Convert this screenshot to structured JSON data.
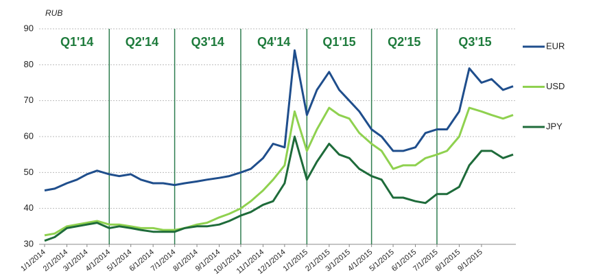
{
  "chart_data": {
    "type": "line",
    "y_unit_label": "RUB",
    "x": [
      "1/1/2014",
      "1/15/2014",
      "2/1/2014",
      "2/15/2014",
      "3/1/2014",
      "3/15/2014",
      "4/1/2014",
      "4/15/2014",
      "5/1/2014",
      "5/15/2014",
      "6/1/2014",
      "6/15/2014",
      "7/1/2014",
      "7/15/2014",
      "8/1/2014",
      "8/15/2014",
      "9/1/2014",
      "9/15/2014",
      "10/1/2014",
      "10/15/2014",
      "11/1/2014",
      "11/15/2014",
      "12/1/2014",
      "12/15/2014",
      "1/1/2015",
      "1/15/2015",
      "2/1/2015",
      "2/15/2015",
      "3/1/2015",
      "3/15/2015",
      "4/1/2015",
      "4/15/2015",
      "5/1/2015",
      "5/15/2015",
      "6/1/2015",
      "6/15/2015",
      "7/1/2015",
      "7/15/2015",
      "8/1/2015",
      "8/15/2015",
      "9/1/2015",
      "9/15/2015",
      "10/1/2015",
      "10/15/2015"
    ],
    "series": [
      {
        "name": "EUR",
        "color": "#1f4e8c",
        "values": [
          45,
          45.5,
          47,
          48,
          49.5,
          50.5,
          49.5,
          49,
          49.5,
          48,
          47,
          47,
          46.5,
          47,
          47.5,
          48,
          48.5,
          49,
          50,
          51,
          54,
          58,
          57,
          84,
          66,
          73,
          78,
          73,
          70,
          67,
          62,
          60,
          56,
          56,
          57,
          61,
          62,
          62,
          67,
          79,
          75,
          76,
          73,
          74
        ]
      },
      {
        "name": "USD",
        "color": "#8fd14f",
        "values": [
          32.5,
          33,
          35,
          35.5,
          36,
          36.5,
          35.5,
          35.5,
          35,
          34.5,
          34.5,
          34,
          34,
          34.5,
          35.5,
          36,
          37.5,
          38.5,
          40,
          42,
          45,
          48,
          52,
          67,
          56,
          62,
          68,
          66,
          65,
          61,
          58,
          56,
          51,
          52,
          52,
          54,
          55,
          56,
          60,
          68,
          67,
          66,
          65,
          66
        ]
      },
      {
        "name": "JPY",
        "color": "#1e6b3a",
        "values": [
          31,
          32,
          34.5,
          35,
          35.5,
          36,
          34.5,
          35,
          34.5,
          34,
          33.5,
          33.5,
          33.5,
          34.5,
          35,
          35,
          35.5,
          36.5,
          38,
          39,
          41,
          42,
          47,
          60,
          48,
          53,
          58,
          55,
          54,
          51,
          49,
          48,
          43,
          43,
          42,
          41.5,
          44,
          44,
          46,
          52,
          56,
          56,
          54,
          55
        ]
      }
    ],
    "xlim": [
      "1/1/2014",
      "10/15/2015"
    ],
    "xticks": [
      "1/1/2014",
      "2/1/2014",
      "3/1/2014",
      "4/1/2014",
      "5/1/2014",
      "6/1/2014",
      "7/1/2014",
      "8/1/2014",
      "9/1/2014",
      "10/1/2014",
      "11/1/2014",
      "12/1/2014",
      "1/1/2015",
      "2/1/2015",
      "3/1/2015",
      "4/1/2015",
      "5/1/2015",
      "6/1/2015",
      "7/1/2015",
      "8/1/2015",
      "9/1/2015"
    ],
    "ylim": [
      30,
      90
    ],
    "yticks": [
      30,
      40,
      50,
      60,
      70,
      80,
      90
    ],
    "grid": true,
    "legend": "right",
    "quarter_lines": [
      "4/1/2014",
      "7/1/2014",
      "10/1/2014",
      "1/1/2015",
      "4/1/2015",
      "7/1/2015"
    ],
    "quarter_labels": [
      "Q1'14",
      "Q2'14",
      "Q3'14",
      "Q4'14",
      "Q1'15",
      "Q2'15",
      "Q3'15"
    ]
  }
}
